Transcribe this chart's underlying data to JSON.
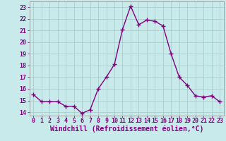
{
  "x": [
    0,
    1,
    2,
    3,
    4,
    5,
    6,
    7,
    8,
    9,
    10,
    11,
    12,
    13,
    14,
    15,
    16,
    17,
    18,
    19,
    20,
    21,
    22,
    23
  ],
  "y": [
    15.5,
    14.9,
    14.9,
    14.9,
    14.5,
    14.5,
    13.9,
    14.2,
    16.0,
    17.0,
    18.1,
    21.1,
    23.1,
    21.5,
    21.9,
    21.8,
    21.4,
    19.0,
    17.0,
    16.3,
    15.4,
    15.3,
    15.4,
    14.9
  ],
  "line_color": "#800080",
  "marker": "+",
  "marker_size": 4,
  "marker_linewidth": 1.0,
  "bg_color": "#c8eaea",
  "grid_color": "#a0c8c8",
  "xlabel": "Windchill (Refroidissement éolien,°C)",
  "xlim": [
    -0.5,
    23.5
  ],
  "ylim": [
    13.7,
    23.5
  ],
  "yticks": [
    14,
    15,
    16,
    17,
    18,
    19,
    20,
    21,
    22,
    23
  ],
  "xticks": [
    0,
    1,
    2,
    3,
    4,
    5,
    6,
    7,
    8,
    9,
    10,
    11,
    12,
    13,
    14,
    15,
    16,
    17,
    18,
    19,
    20,
    21,
    22,
    23
  ],
  "tick_color": "#800080",
  "tick_fontsize": 6,
  "xlabel_fontsize": 7,
  "axis_color": "#800080",
  "linewidth": 1.0,
  "spine_color": "#888888"
}
